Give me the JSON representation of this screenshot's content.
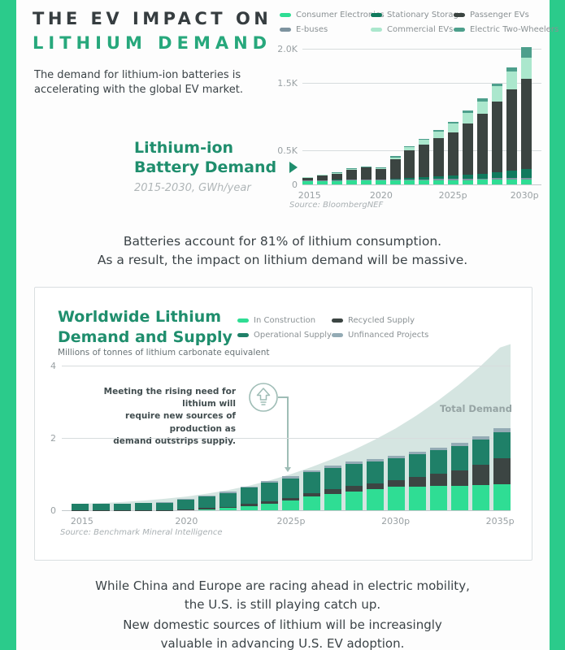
{
  "page": {
    "header": {
      "title_line1": "THE EV IMPACT ON",
      "title_line2": "LITHIUM DEMAND",
      "intro": "The demand for lithium-ion batteries is accelerating with the global EV market."
    },
    "mid_text": [
      "Batteries account for 81% of lithium consumption.",
      "As a result, the impact on lithium demand will be massive."
    ],
    "bottom_text_1": [
      "While China and Europe are racing ahead in electric mobility,",
      "the U.S. is still playing catch up."
    ],
    "bottom_text_2": [
      "New domestic sources of lithium will be increasingly",
      "valuable in advancing U.S. EV adoption."
    ]
  },
  "colors": {
    "edge_green": "#2bcb8b",
    "title_green": "#27a87c",
    "chart_title_green": "#1f8e6d",
    "dark_text": "#363d40",
    "demand_area": "#cbdfd9",
    "annotation": "#9fbdb6"
  },
  "chart_data": [
    {
      "id": "battery-demand",
      "type": "bar",
      "title_line1": "Lithium-ion",
      "title_line2": "Battery Demand",
      "subtitle": "2015-2030, GWh/year",
      "ylabel": "GWh/year",
      "source": "Source: BloombergNEF",
      "categories": [
        "2015",
        "2016",
        "2017",
        "2018",
        "2019",
        "2020",
        "2021",
        "2022",
        "2023",
        "2024",
        "2025",
        "2026",
        "2027",
        "2028",
        "2029",
        "2030"
      ],
      "x_tick_labels": {
        "0": "2015",
        "5": "2020",
        "10": "2025p",
        "15": "2030p"
      },
      "y_ticks": [
        {
          "label": "2.0K",
          "value": 2000
        },
        {
          "label": "1.5K",
          "value": 1500
        },
        {
          "label": "0.5K",
          "value": 500
        },
        {
          "label": "0",
          "value": 0
        }
      ],
      "ylim": [
        0,
        2000
      ],
      "grid": true,
      "legend_position": "top-right",
      "legend": [
        "Consumer Electronics",
        "Stationary Storage",
        "Passenger EVs",
        "E-buses",
        "Commercial EVs",
        "Electric Two-Wheelers"
      ],
      "series": [
        {
          "name": "Consumer Electronics",
          "color": "#2fdd94",
          "values": [
            50,
            52,
            54,
            56,
            57,
            58,
            60,
            61,
            62,
            64,
            65,
            66,
            68,
            70,
            72,
            74
          ]
        },
        {
          "name": "E-buses",
          "color": "#7d939f",
          "values": [
            6,
            8,
            9,
            11,
            12,
            10,
            12,
            14,
            15,
            17,
            18,
            19,
            20,
            21,
            22,
            23
          ]
        },
        {
          "name": "Stationary Storage",
          "color": "#107a5d",
          "values": [
            2,
            3,
            4,
            6,
            8,
            9,
            14,
            20,
            27,
            35,
            44,
            55,
            68,
            84,
            105,
            135
          ]
        },
        {
          "name": "Passenger EVs",
          "color": "#3b4441",
          "values": [
            42,
            74,
            93,
            148,
            170,
            148,
            288,
            403,
            478,
            567,
            645,
            757,
            884,
            1047,
            1205,
            1330
          ]
        },
        {
          "name": "Commercial EVs",
          "color": "#abe7cd",
          "values": [
            4,
            5,
            6,
            8,
            11,
            13,
            27,
            51,
            75,
            100,
            127,
            156,
            187,
            222,
            262,
            308
          ]
        },
        {
          "name": "Electric Two-Wheelers",
          "color": "#4d9f8c",
          "values": [
            6,
            8,
            9,
            11,
            12,
            12,
            14,
            16,
            18,
            22,
            26,
            32,
            38,
            46,
            64,
            160
          ]
        }
      ]
    },
    {
      "id": "lithium-demand-supply",
      "type": "bar",
      "title_line1": "Worldwide Lithium",
      "title_line2": "Demand and Supply",
      "subtitle": "Millions of tonnes of lithium carbonate equivalent",
      "source": "Source: Benchmark Mineral Intelligence",
      "annotation": {
        "lines": [
          "Meeting the rising need for lithium will",
          "require new sources of production as",
          "demand outstrips supply."
        ]
      },
      "categories": [
        "2015",
        "2016",
        "2017",
        "2018",
        "2019",
        "2020",
        "2021",
        "2022",
        "2023",
        "2024",
        "2025",
        "2026",
        "2027",
        "2028",
        "2029",
        "2030",
        "2031",
        "2032",
        "2033",
        "2034",
        "2035"
      ],
      "x_tick_labels": {
        "0": "2015",
        "5": "2020",
        "10": "2025p",
        "15": "2030p",
        "20": "2035p"
      },
      "y_ticks": [
        {
          "label": "4",
          "value": 4
        },
        {
          "label": "2",
          "value": 2
        },
        {
          "label": "0",
          "value": 0
        }
      ],
      "ylim": [
        0,
        4
      ],
      "grid": true,
      "legend_position": "top-right",
      "legend": [
        "In Construction",
        "Recycled Supply",
        "Operational Supply",
        "Unfinanced Projects"
      ],
      "series": [
        {
          "name": "In Construction",
          "color": "#2fdd94",
          "values": [
            0,
            0,
            0,
            0,
            0,
            0,
            0.03,
            0.06,
            0.12,
            0.18,
            0.26,
            0.38,
            0.46,
            0.52,
            0.58,
            0.65,
            0.66,
            0.67,
            0.68,
            0.7,
            0.71
          ]
        },
        {
          "name": "Recycled Supply",
          "color": "#3c4543",
          "values": [
            0.01,
            0.01,
            0.01,
            0.01,
            0.01,
            0.02,
            0.03,
            0.04,
            0.05,
            0.06,
            0.07,
            0.09,
            0.12,
            0.15,
            0.17,
            0.19,
            0.26,
            0.34,
            0.42,
            0.55,
            0.73
          ]
        },
        {
          "name": "Operational Supply",
          "color": "#1f8068",
          "values": [
            0.16,
            0.16,
            0.17,
            0.19,
            0.2,
            0.28,
            0.32,
            0.38,
            0.45,
            0.52,
            0.55,
            0.58,
            0.6,
            0.61,
            0.6,
            0.6,
            0.63,
            0.65,
            0.68,
            0.7,
            0.72
          ]
        },
        {
          "name": "Unfinanced Projects",
          "color": "#94abb5",
          "values": [
            0.01,
            0.01,
            0.01,
            0.01,
            0.02,
            0.02,
            0.02,
            0.03,
            0.03,
            0.04,
            0.07,
            0.06,
            0.06,
            0.06,
            0.06,
            0.06,
            0.07,
            0.08,
            0.08,
            0.09,
            0.11
          ]
        }
      ],
      "demand_area": {
        "label": "Total Demand",
        "color": "#cbdfd9",
        "values": [
          0.18,
          0.2,
          0.23,
          0.27,
          0.32,
          0.38,
          0.46,
          0.56,
          0.68,
          0.83,
          1.0,
          1.2,
          1.42,
          1.67,
          1.95,
          2.26,
          2.62,
          3.02,
          3.46,
          3.95,
          4.5
        ]
      }
    }
  ]
}
